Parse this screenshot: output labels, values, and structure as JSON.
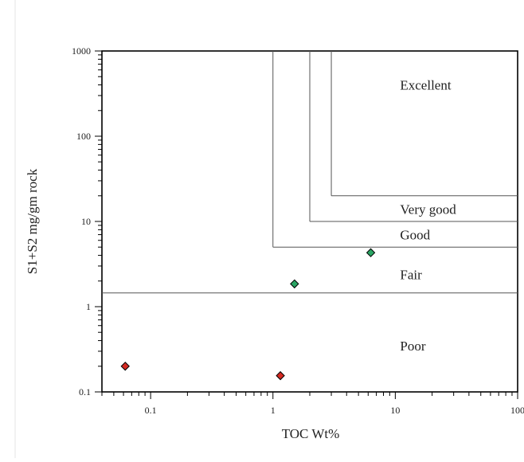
{
  "chart_data": {
    "type": "scatter",
    "title": "",
    "xlabel": "TOC Wt%",
    "ylabel": "S1+S2 mg/gm rock",
    "xscale": "log",
    "yscale": "log",
    "xlim": [
      0.04,
      100
    ],
    "ylim": [
      0.1,
      1000
    ],
    "grid": false,
    "x_tick_labels": [
      "0.1",
      "1",
      "10",
      "100"
    ],
    "y_tick_labels": [
      "0.1",
      "1",
      "10",
      "100",
      "1000"
    ],
    "zones": [
      {
        "label": "Excellent",
        "label_at": [
          10,
          400
        ]
      },
      {
        "label": "Very good",
        "label_at": [
          10,
          14
        ]
      },
      {
        "label": "Good",
        "label_at": [
          10,
          7
        ]
      },
      {
        "label": "Fair",
        "label_at": [
          10,
          2.4
        ]
      },
      {
        "label": "Poor",
        "label_at": [
          10,
          0.35
        ]
      }
    ],
    "boundaries": [
      {
        "x0": 0.04,
        "y0": 1.45,
        "x1": 100,
        "y1": 1.45
      },
      {
        "x0": 1.0,
        "y0": 5,
        "x1": 100,
        "y1": 5
      },
      {
        "x0": 1.0,
        "y0": 5,
        "x1": 1.0,
        "y1": 1000
      },
      {
        "x0": 2.0,
        "y0": 10,
        "x1": 100,
        "y1": 10
      },
      {
        "x0": 2.0,
        "y0": 10,
        "x1": 2.0,
        "y1": 1000
      },
      {
        "x0": 3.0,
        "y0": 20,
        "x1": 100,
        "y1": 20
      },
      {
        "x0": 3.0,
        "y0": 20,
        "x1": 3.0,
        "y1": 1000
      }
    ],
    "series": [
      {
        "color": "#2aa564",
        "points": [
          {
            "x": 1.5,
            "y": 1.85
          },
          {
            "x": 6.3,
            "y": 4.3
          }
        ]
      },
      {
        "color": "#d42a22",
        "points": [
          {
            "x": 0.062,
            "y": 0.2
          },
          {
            "x": 1.15,
            "y": 0.155
          }
        ]
      }
    ]
  }
}
